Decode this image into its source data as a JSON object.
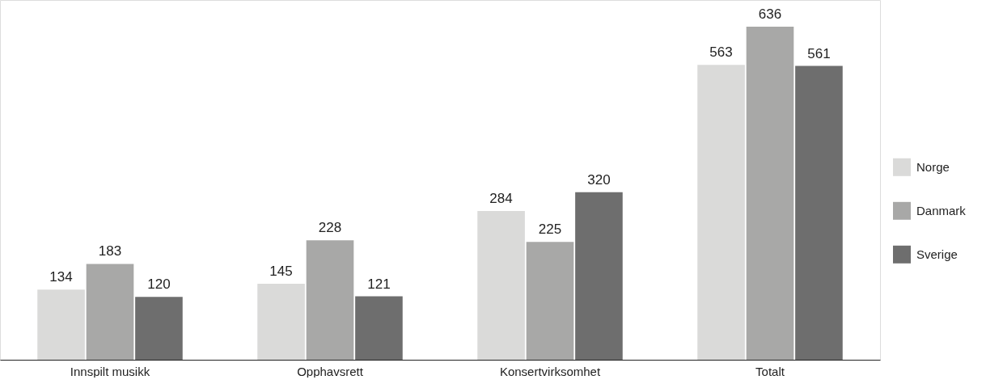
{
  "chart_data": {
    "type": "bar",
    "categories": [
      "Innspilt musikk",
      "Opphavsrett",
      "Konsertvirksomhet",
      "Totalt"
    ],
    "series": [
      {
        "name": "Norge",
        "color": "#dadad9",
        "values": [
          134,
          145,
          284,
          563
        ]
      },
      {
        "name": "Danmark",
        "color": "#a8a8a7",
        "values": [
          183,
          228,
          225,
          636
        ]
      },
      {
        "name": "Sverige",
        "color": "#6e6e6e",
        "values": [
          120,
          121,
          320,
          561
        ]
      }
    ],
    "data_labels": true,
    "legend": "right",
    "grid": false
  }
}
